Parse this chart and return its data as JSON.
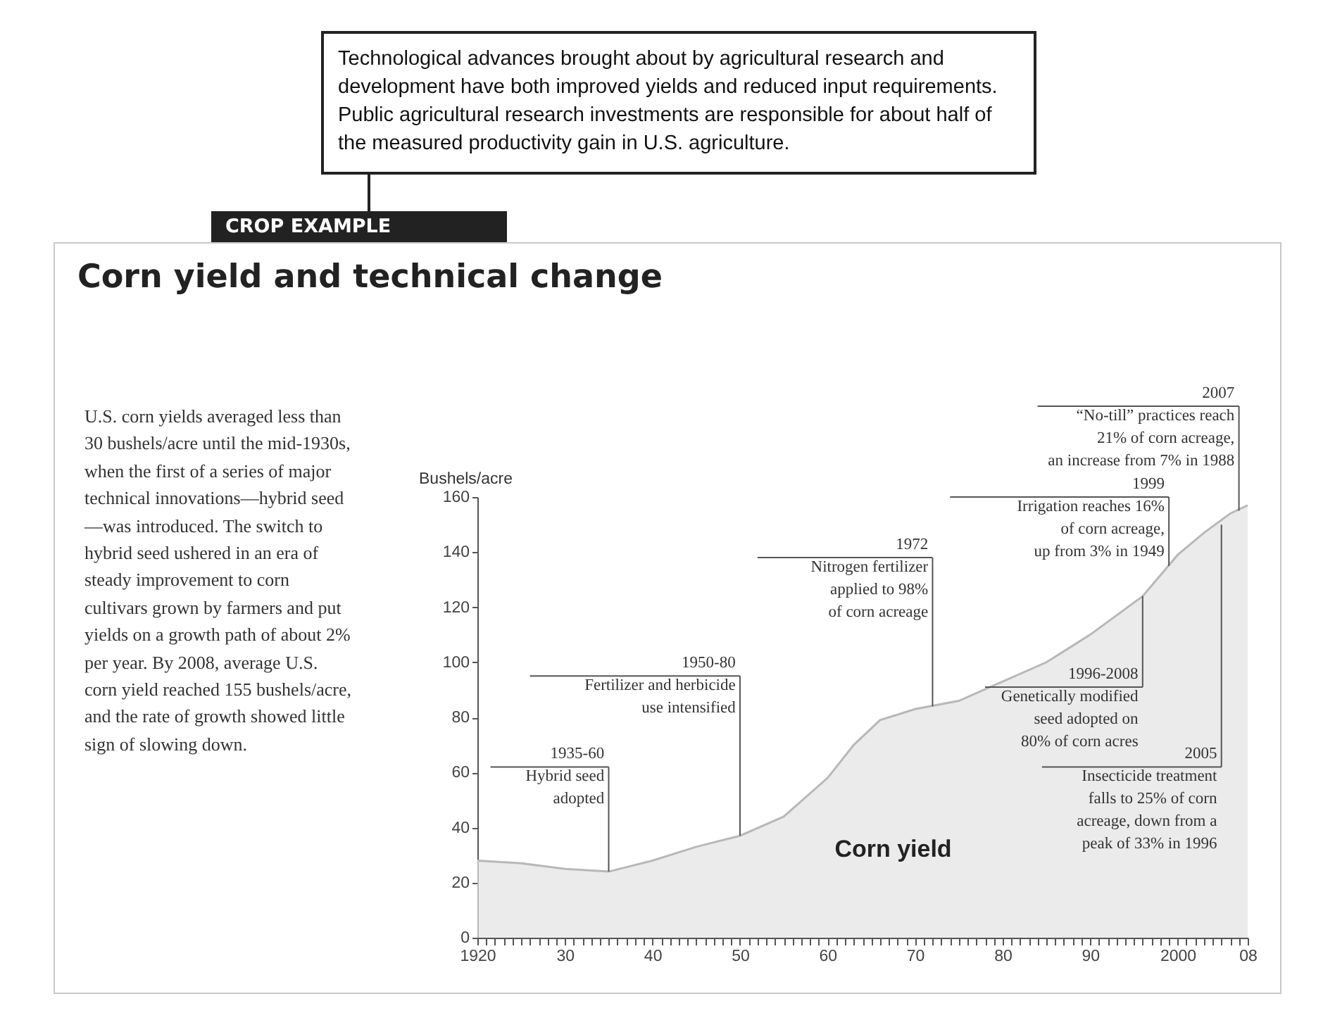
{
  "chart_data": {
    "type": "area",
    "title": "Corn yield and technical change",
    "ylabel": "Bushels/acre",
    "annotations": [
      "Technological advances brought about by agricultural research and development have both improved yields and reduced input requirements. Public agricultural research investments are responsible for about half of the measured productivity gain in U.S. agriculture.",
      "CROP EXAMPLE",
      "U.S. corn yields averaged less than 30 bushels/acre until the mid-1930s, when the first of a series of major technical innovations—hybrid seed—was introduced. The switch to hybrid seed ushered in an era of steady improvement to corn cultivars grown by farmers and put yields on a growth path of about 2% per year. By 2008, average U.S. corn yield reached 155 bushels/acre, and the rate of growth showed little sign of slowing down.",
      {
        "text": "1935-60\nHybrid seed\nadopted",
        "x": 1935,
        "y": 24
      },
      {
        "text": "1950-80\nFertilizer and herbicide\nuse intensified",
        "x": 1950,
        "y": 37
      },
      {
        "text": "1972\nNitrogen fertilizer\napplied to 98%\nof corn acreage",
        "x": 1972,
        "y": 84
      },
      {
        "text": "1996-2008\nGenetically modified\nseed adopted on\n80% of corn acres",
        "x": 1996,
        "y": 124
      },
      {
        "text": "1999\nIrrigation reaches 16%\nof corn acreage,\nup from 3% in 1949",
        "x": 1999,
        "y": 135
      },
      {
        "text": "2005\nInsecticide treatment\nfalls to 25% of corn\nacreage, down from a\npeak of 33% in 1996",
        "x": 2005,
        "y": 150
      },
      {
        "text": "2007\n“No-till” practices reach\n21% of corn acreage,\nan increase from 7% in 1988",
        "x": 2007,
        "y": 155
      }
    ],
    "series": [
      {
        "name": "Corn yield",
        "color": "#e2e2e2",
        "x": [
          1920,
          1925,
          1930,
          1935,
          1940,
          1945,
          1950,
          1955,
          1960,
          1963,
          1966,
          1970,
          1975,
          1980,
          1985,
          1990,
          1996,
          2000,
          2003,
          2006,
          2008
        ],
        "values": [
          28,
          27,
          25,
          24,
          28,
          33,
          37,
          44,
          58,
          70,
          79,
          83,
          86,
          93,
          100,
          110,
          124,
          139,
          147,
          154,
          157
        ]
      }
    ],
    "xlim": [
      1920,
      2008
    ],
    "ylim": [
      0,
      160
    ],
    "yticks": [
      0,
      20,
      40,
      60,
      80,
      100,
      120,
      140,
      160
    ],
    "xticks": [
      1920,
      {
        "value": 1921,
        "label": null
      },
      {
        "value": 1922,
        "label": null
      },
      {
        "value": 1923,
        "label": null
      },
      {
        "value": 1924,
        "label": null
      },
      {
        "value": 1925,
        "label": null
      },
      {
        "value": 1926,
        "label": null
      },
      {
        "value": 1927,
        "label": null
      },
      {
        "value": 1928,
        "label": null
      },
      {
        "value": 1929,
        "label": null
      },
      {
        "value": 1930,
        "label": "30"
      },
      {
        "value": 1931,
        "label": null
      },
      {
        "value": 1932,
        "label": null
      },
      {
        "value": 1933,
        "label": null
      },
      {
        "value": 1934,
        "label": null
      },
      {
        "value": 1935,
        "label": null
      },
      {
        "value": 1936,
        "label": null
      },
      {
        "value": 1937,
        "label": null
      },
      {
        "value": 1938,
        "label": null
      },
      {
        "value": 1939,
        "label": null
      },
      {
        "value": 1940,
        "label": "40"
      },
      {
        "value": 1941,
        "label": null
      },
      {
        "value": 1942,
        "label": null
      },
      {
        "value": 1943,
        "label": null
      },
      {
        "value": 1944,
        "label": null
      },
      {
        "value": 1945,
        "label": null
      },
      {
        "value": 1946,
        "label": null
      },
      {
        "value": 1947,
        "label": null
      },
      {
        "value": 1948,
        "label": null
      },
      {
        "value": 1949,
        "label": null
      },
      {
        "value": 1950,
        "label": "50"
      },
      {
        "value": 1951,
        "label": null
      },
      {
        "value": 1952,
        "label": null
      },
      {
        "value": 1953,
        "label": null
      },
      {
        "value": 1954,
        "label": null
      },
      {
        "value": 1955,
        "label": null
      },
      {
        "value": 1956,
        "label": null
      },
      {
        "value": 1957,
        "label": null
      },
      {
        "value": 1958,
        "label": null
      },
      {
        "value": 1959,
        "label": null
      },
      {
        "value": 1960,
        "label": "60"
      },
      {
        "value": 1961,
        "label": null
      },
      {
        "value": 1962,
        "label": null
      },
      {
        "value": 1963,
        "label": null
      },
      {
        "value": 1964,
        "label": null
      },
      {
        "value": 1965,
        "label": null
      },
      {
        "value": 1966,
        "label": null
      },
      {
        "value": 1967,
        "label": null
      },
      {
        "value": 1968,
        "label": null
      },
      {
        "value": 1969,
        "label": null
      },
      {
        "value": 1970,
        "label": "70"
      },
      {
        "value": 1971,
        "label": null
      },
      {
        "value": 1972,
        "label": null
      },
      {
        "value": 1973,
        "label": null
      },
      {
        "value": 1974,
        "label": null
      },
      {
        "value": 1975,
        "label": null
      },
      {
        "value": 1976,
        "label": null
      },
      {
        "value": 1977,
        "label": null
      },
      {
        "value": 1978,
        "label": null
      },
      {
        "value": 1979,
        "label": null
      },
      {
        "value": 1980,
        "label": "80"
      },
      {
        "value": 1981,
        "label": null
      },
      {
        "value": 1982,
        "label": null
      },
      {
        "value": 1983,
        "label": null
      },
      {
        "value": 1984,
        "label": null
      },
      {
        "value": 1985,
        "label": null
      },
      {
        "value": 1986,
        "label": null
      },
      {
        "value": 1987,
        "label": null
      },
      {
        "value": 1988,
        "label": null
      },
      {
        "value": 1989,
        "label": null
      },
      {
        "value": 1990,
        "label": "90"
      },
      {
        "value": 1991,
        "label": null
      },
      {
        "value": 1992,
        "label": null
      },
      {
        "value": 1993,
        "label": null
      },
      {
        "value": 1994,
        "label": null
      },
      {
        "value": 1995,
        "label": null
      },
      {
        "value": 1996,
        "label": null
      },
      {
        "value": 1997,
        "label": null
      },
      {
        "value": 1998,
        "label": null
      },
      {
        "value": 1999,
        "label": null
      },
      2000,
      {
        "value": 2001,
        "label": null
      },
      {
        "value": 2002,
        "label": null
      },
      {
        "value": 2003,
        "label": null
      },
      {
        "value": 2004,
        "label": null
      },
      {
        "value": 2005,
        "label": null
      },
      {
        "value": 2006,
        "label": null
      },
      {
        "value": 2007,
        "label": null
      },
      {
        "value": 2008,
        "label": "08"
      }
    ]
  }
}
